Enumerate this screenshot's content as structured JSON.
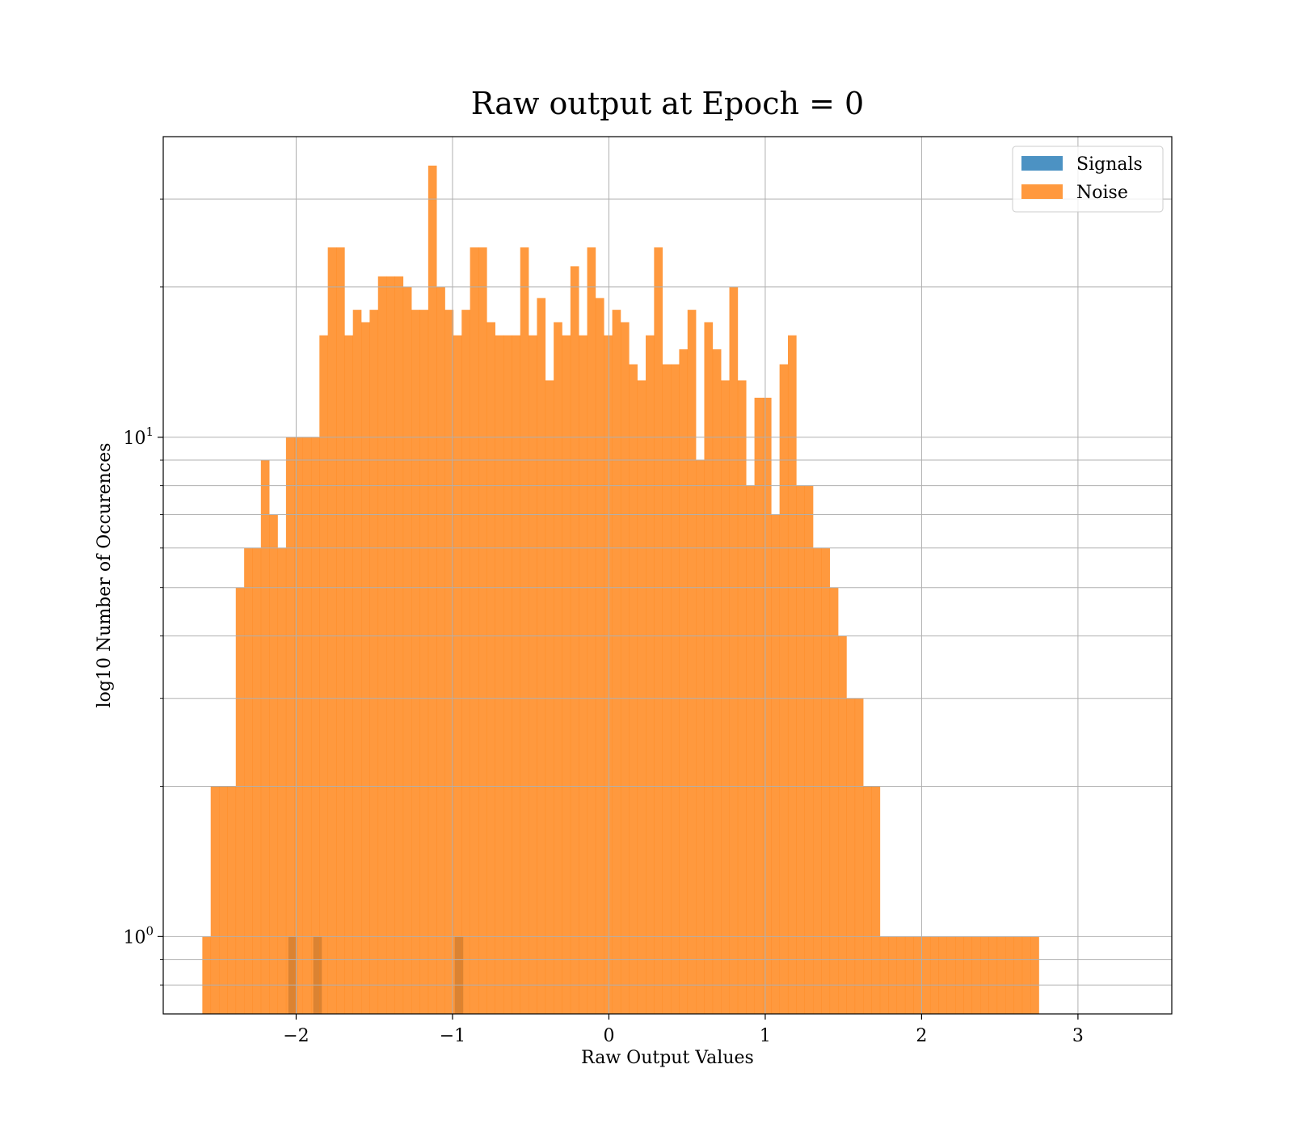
{
  "chart_data": {
    "type": "bar",
    "title": "Raw output at Epoch = 0",
    "xlabel": "Raw Output Values",
    "ylabel": "log10 Number of Occurences",
    "xlim": [
      -2.85,
      3.6
    ],
    "ylim": [
      0.7,
      40
    ],
    "yscale": "log",
    "grid": true,
    "legend_position": "top-right",
    "x_ticks": [
      {
        "value": -2,
        "label": "−2"
      },
      {
        "value": -1,
        "label": "−1"
      },
      {
        "value": 0,
        "label": "0"
      },
      {
        "value": 1,
        "label": "1"
      },
      {
        "value": 2,
        "label": "2"
      },
      {
        "value": 3,
        "label": "3"
      }
    ],
    "y_ticks": [
      {
        "value": 1,
        "base": "10",
        "exp": "0"
      },
      {
        "value": 10,
        "base": "10",
        "exp": "1"
      }
    ],
    "series": [
      {
        "name": "Signals",
        "color": "#1f77b4",
        "alpha": 0.8,
        "bin_start": -2.05,
        "bin_width": 0.0532,
        "counts": [
          1,
          0,
          0,
          1,
          0,
          0,
          0,
          0,
          0,
          0,
          0,
          0,
          0,
          0,
          0,
          0,
          0,
          0,
          0,
          0,
          1,
          0,
          0,
          0,
          0,
          0,
          0,
          0,
          0,
          0,
          0,
          0,
          0,
          0,
          0,
          0,
          0,
          0,
          0,
          0,
          0,
          0,
          0,
          0,
          0,
          0,
          0,
          0,
          0,
          0,
          0,
          0,
          0,
          0,
          0,
          0,
          0,
          0,
          0,
          0,
          0,
          0,
          0,
          0,
          0,
          0,
          0,
          0,
          0,
          0,
          0,
          0,
          0,
          0,
          0,
          0,
          0,
          0,
          0,
          0,
          0,
          0,
          0,
          0,
          0,
          0,
          0,
          0,
          0,
          0,
          0,
          0,
          0,
          0,
          0,
          0,
          0,
          0,
          0,
          0
        ]
      },
      {
        "name": "Noise",
        "color": "#ff7f0e",
        "alpha": 0.8,
        "bin_start": -2.6,
        "bin_width": 0.0535,
        "counts": [
          1,
          2,
          2,
          2,
          5,
          6,
          6,
          9,
          7,
          6,
          10,
          10,
          10,
          10,
          16,
          24,
          24,
          16,
          18,
          17,
          18,
          21,
          21,
          21,
          20,
          18,
          18,
          35,
          20,
          18,
          16,
          18,
          24,
          24,
          17,
          16,
          16,
          16,
          24,
          16,
          19,
          13,
          17,
          16,
          22,
          16,
          24,
          19,
          16,
          18,
          17,
          14,
          13,
          16,
          24,
          14,
          14,
          15,
          18,
          9,
          17,
          15,
          13,
          20,
          13,
          8,
          12,
          12,
          7,
          14,
          16,
          8,
          8,
          6,
          6,
          5,
          4,
          3,
          3,
          2,
          2,
          1,
          1,
          1,
          1,
          1,
          1,
          1,
          1,
          1,
          1,
          1,
          1,
          1,
          1,
          1,
          1,
          1,
          1,
          1
        ]
      }
    ]
  }
}
